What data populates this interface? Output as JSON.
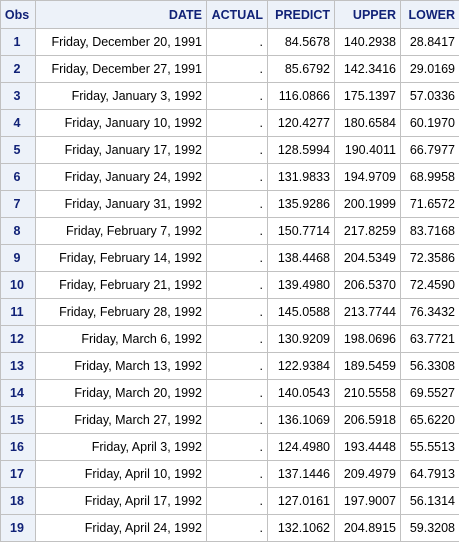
{
  "table": {
    "headers": {
      "obs": "Obs",
      "date": "DATE",
      "actual": "ACTUAL",
      "predict": "PREDICT",
      "upper": "UPPER",
      "lower": "LOWER"
    },
    "rows": [
      {
        "obs": "1",
        "date": "Friday, December 20, 1991",
        "actual": ".",
        "predict": "84.5678",
        "upper": "140.2938",
        "lower": "28.8417"
      },
      {
        "obs": "2",
        "date": "Friday, December 27, 1991",
        "actual": ".",
        "predict": "85.6792",
        "upper": "142.3416",
        "lower": "29.0169"
      },
      {
        "obs": "3",
        "date": "Friday, January 3, 1992",
        "actual": ".",
        "predict": "116.0866",
        "upper": "175.1397",
        "lower": "57.0336"
      },
      {
        "obs": "4",
        "date": "Friday, January 10, 1992",
        "actual": ".",
        "predict": "120.4277",
        "upper": "180.6584",
        "lower": "60.1970"
      },
      {
        "obs": "5",
        "date": "Friday, January 17, 1992",
        "actual": ".",
        "predict": "128.5994",
        "upper": "190.4011",
        "lower": "66.7977"
      },
      {
        "obs": "6",
        "date": "Friday, January 24, 1992",
        "actual": ".",
        "predict": "131.9833",
        "upper": "194.9709",
        "lower": "68.9958"
      },
      {
        "obs": "7",
        "date": "Friday, January 31, 1992",
        "actual": ".",
        "predict": "135.9286",
        "upper": "200.1999",
        "lower": "71.6572"
      },
      {
        "obs": "8",
        "date": "Friday, February 7, 1992",
        "actual": ".",
        "predict": "150.7714",
        "upper": "217.8259",
        "lower": "83.7168"
      },
      {
        "obs": "9",
        "date": "Friday, February 14, 1992",
        "actual": ".",
        "predict": "138.4468",
        "upper": "204.5349",
        "lower": "72.3586"
      },
      {
        "obs": "10",
        "date": "Friday, February 21, 1992",
        "actual": ".",
        "predict": "139.4980",
        "upper": "206.5370",
        "lower": "72.4590"
      },
      {
        "obs": "11",
        "date": "Friday, February 28, 1992",
        "actual": ".",
        "predict": "145.0588",
        "upper": "213.7744",
        "lower": "76.3432"
      },
      {
        "obs": "12",
        "date": "Friday, March 6, 1992",
        "actual": ".",
        "predict": "130.9209",
        "upper": "198.0696",
        "lower": "63.7721"
      },
      {
        "obs": "13",
        "date": "Friday, March 13, 1992",
        "actual": ".",
        "predict": "122.9384",
        "upper": "189.5459",
        "lower": "56.3308"
      },
      {
        "obs": "14",
        "date": "Friday, March 20, 1992",
        "actual": ".",
        "predict": "140.0543",
        "upper": "210.5558",
        "lower": "69.5527"
      },
      {
        "obs": "15",
        "date": "Friday, March 27, 1992",
        "actual": ".",
        "predict": "136.1069",
        "upper": "206.5918",
        "lower": "65.6220"
      },
      {
        "obs": "16",
        "date": "Friday, April 3, 1992",
        "actual": ".",
        "predict": "124.4980",
        "upper": "193.4448",
        "lower": "55.5513"
      },
      {
        "obs": "17",
        "date": "Friday, April 10, 1992",
        "actual": ".",
        "predict": "137.1446",
        "upper": "209.4979",
        "lower": "64.7913"
      },
      {
        "obs": "18",
        "date": "Friday, April 17, 1992",
        "actual": ".",
        "predict": "127.0161",
        "upper": "197.9007",
        "lower": "56.1314"
      },
      {
        "obs": "19",
        "date": "Friday, April 24, 1992",
        "actual": ".",
        "predict": "132.1062",
        "upper": "204.8915",
        "lower": "59.3208"
      }
    ]
  },
  "colors": {
    "header_bg": "#edf2f9",
    "header_text": "#112277",
    "grid_line": "#c1c1c1"
  }
}
